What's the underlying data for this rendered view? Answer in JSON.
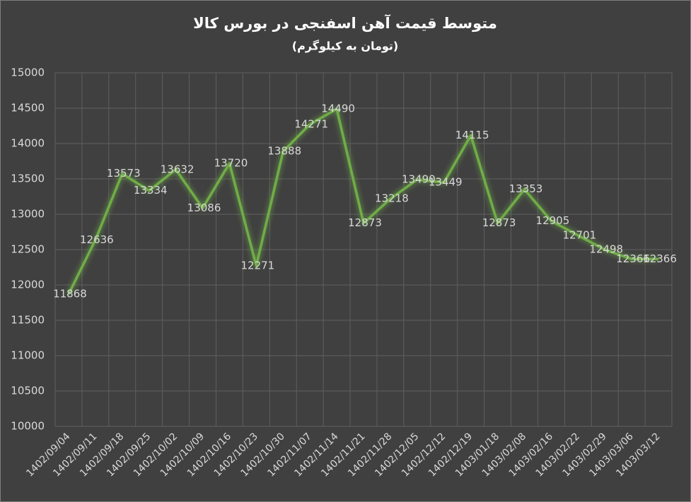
{
  "chart_data": {
    "type": "line",
    "title": "متوسط قیمت آهن اسفنجی در بورس کالا",
    "subtitle": "(تومان به کیلوگرم)",
    "categories": [
      "1402/09/04",
      "1402/09/11",
      "1402/09/18",
      "1402/09/25",
      "1402/10/02",
      "1402/10/09",
      "1402/10/16",
      "1402/10/23",
      "1402/10/30",
      "1402/11/07",
      "1402/11/14",
      "1402/11/21",
      "1402/11/28",
      "1402/12/05",
      "1402/12/12",
      "1402/12/19",
      "1403/01/18",
      "1403/02/08",
      "1403/02/16",
      "1403/02/22",
      "1403/02/29",
      "1403/03/06",
      "1403/03/12"
    ],
    "series": [
      {
        "name": "",
        "color": "#70ad47",
        "values": [
          11868,
          12636,
          13573,
          13334,
          13632,
          13086,
          13720,
          12271,
          13888,
          14271,
          14490,
          12873,
          13218,
          13490,
          13449,
          14115,
          12873,
          13353,
          12905,
          12701,
          12498,
          12366,
          12366
        ]
      }
    ],
    "ylim": [
      10000,
      15000
    ],
    "yticks": [
      10000,
      10500,
      11000,
      11500,
      12000,
      12500,
      13000,
      13500,
      14000,
      14500,
      15000
    ],
    "grid": true
  }
}
